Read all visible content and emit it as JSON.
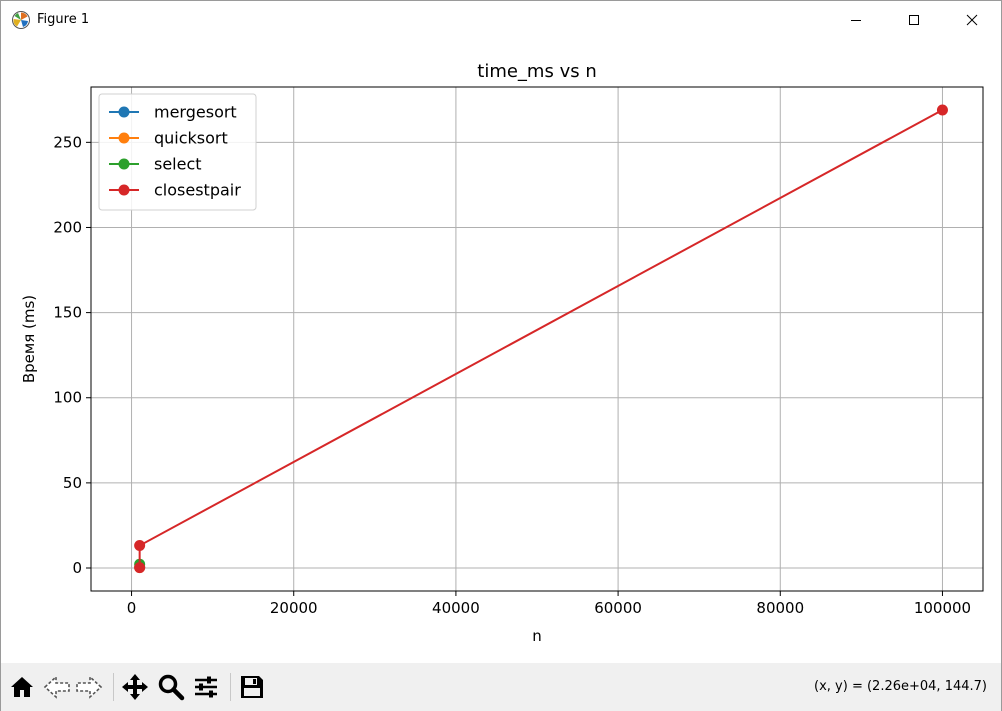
{
  "window": {
    "title": "Figure 1",
    "minimize_icon": "minimize-icon",
    "maximize_icon": "maximize-icon",
    "close_icon": "close-icon"
  },
  "toolbar": {
    "tools": [
      "home-icon",
      "back-arrow-icon",
      "forward-arrow-icon",
      "pan-icon",
      "zoom-icon",
      "configure-subplots-icon",
      "save-icon"
    ],
    "coords": "(x, y) = (2.26e+04, 144.7)"
  },
  "chart_data": {
    "type": "line",
    "title": "time_ms vs n",
    "xlabel": "n",
    "ylabel": "Время (ms)",
    "xlim": [
      -5000,
      105000
    ],
    "ylim": [
      -13.5,
      282.5
    ],
    "xticks": [
      0,
      20000,
      40000,
      60000,
      80000,
      100000
    ],
    "yticks": [
      0,
      50,
      100,
      150,
      200,
      250
    ],
    "grid": true,
    "legend_position": "top-left",
    "series": [
      {
        "name": "mergesort",
        "color": "#1f77b4",
        "marker": "circle",
        "x": [
          1000
        ],
        "y": [
          0.4
        ]
      },
      {
        "name": "quicksort",
        "color": "#ff7f0e",
        "marker": "circle",
        "x": [
          1000
        ],
        "y": [
          0.3
        ]
      },
      {
        "name": "select",
        "color": "#2ca02c",
        "marker": "circle",
        "x": [
          1000
        ],
        "y": [
          2.2
        ]
      },
      {
        "name": "closestpair",
        "color": "#d62728",
        "marker": "circle",
        "x": [
          1000,
          1000,
          100000
        ],
        "y": [
          0.2,
          13.2,
          269
        ]
      }
    ]
  }
}
